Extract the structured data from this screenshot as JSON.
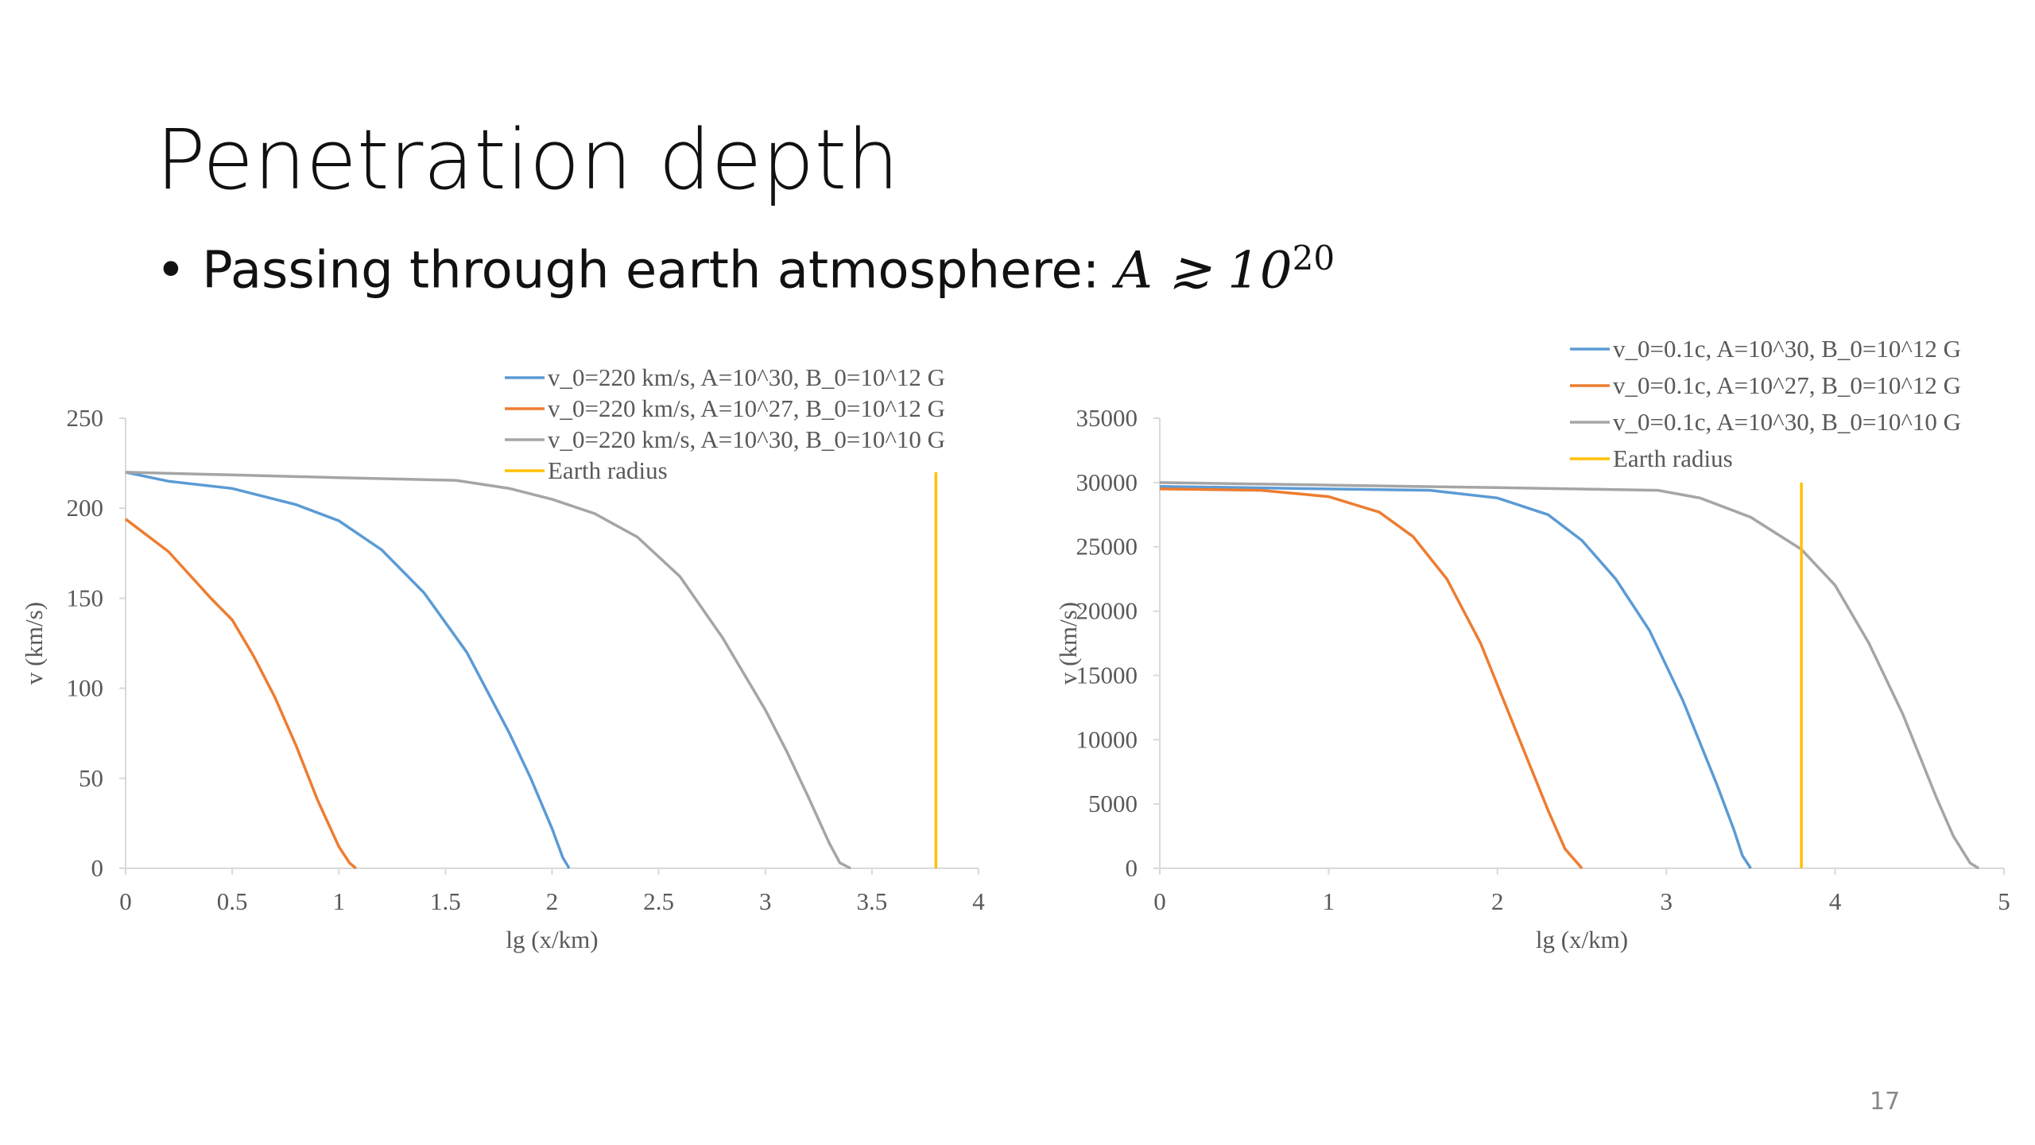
{
  "slide": {
    "title": "Penetration depth",
    "bullet": "Passing through earth atmosphere: ",
    "formula": "A ≳ 10",
    "formula_superscript": "20",
    "page_number": "17"
  },
  "chart_data": [
    {
      "type": "line",
      "xlabel": "lg (x/km)",
      "ylabel": "v (km/s)",
      "xlim": [
        0,
        4
      ],
      "xticks": [
        0,
        0.5,
        1,
        1.5,
        2,
        2.5,
        3,
        3.5,
        4
      ],
      "ylim": [
        0,
        250
      ],
      "yticks": [
        0,
        50,
        100,
        150,
        200,
        250
      ],
      "grid": false,
      "legend_position": "upper right",
      "series": [
        {
          "name": "v_0=220 km/s, A=10^30, B_0=10^12 G",
          "color": "#5b9bd5",
          "x": [
            0,
            0.2,
            0.5,
            0.8,
            1.0,
            1.2,
            1.4,
            1.6,
            1.8,
            1.9,
            2.0,
            2.05,
            2.08
          ],
          "values": [
            220,
            215,
            211,
            202,
            193,
            177,
            153,
            120,
            75,
            50,
            22,
            6,
            0
          ]
        },
        {
          "name": "v_0=220 km/s, A=10^27, B_0=10^12 G",
          "color": "#ed7d31",
          "x": [
            0,
            0.2,
            0.4,
            0.5,
            0.6,
            0.7,
            0.8,
            0.9,
            1.0,
            1.05,
            1.08
          ],
          "values": [
            194,
            176,
            150,
            138,
            118,
            95,
            68,
            38,
            12,
            3,
            0
          ]
        },
        {
          "name": "v_0=220 km/s, A=10^30, B_0=10^10 G",
          "color": "#a5a5a5",
          "x": [
            0,
            0.5,
            1,
            1.55,
            1.8,
            2.0,
            2.2,
            2.4,
            2.6,
            2.8,
            3.0,
            3.1,
            3.2,
            3.3,
            3.35,
            3.4
          ],
          "values": [
            220,
            218.5,
            217,
            215.5,
            211,
            205,
            197,
            184,
            162,
            128,
            88,
            65,
            40,
            14,
            3,
            0
          ]
        },
        {
          "name": "Earth radius",
          "color": "#ffc000",
          "x": [
            3.8,
            3.8
          ],
          "values": [
            0,
            220
          ]
        }
      ]
    },
    {
      "type": "line",
      "xlabel": "lg (x/km)",
      "ylabel": "v (km/s)",
      "xlim": [
        0,
        5
      ],
      "xticks": [
        0,
        1,
        2,
        3,
        4,
        5
      ],
      "ylim": [
        0,
        35000
      ],
      "yticks": [
        0,
        5000,
        10000,
        15000,
        20000,
        25000,
        30000,
        35000
      ],
      "grid": false,
      "legend_position": "above",
      "series": [
        {
          "name": "v_0=0.1c, A=10^30, B_0=10^12 G",
          "color": "#5b9bd5",
          "x": [
            0,
            0.5,
            1,
            1.6,
            2.0,
            2.3,
            2.5,
            2.7,
            2.9,
            3.1,
            3.3,
            3.4,
            3.45,
            3.5
          ],
          "values": [
            29700,
            29600,
            29500,
            29400,
            28800,
            27500,
            25500,
            22500,
            18500,
            13000,
            6500,
            3000,
            1000,
            0
          ]
        },
        {
          "name": "v_0=0.1c, A=10^27, B_0=10^12 G",
          "color": "#ed7d31",
          "x": [
            0,
            0.6,
            1.0,
            1.3,
            1.5,
            1.7,
            1.9,
            2.1,
            2.3,
            2.4,
            2.5
          ],
          "values": [
            29500,
            29400,
            28900,
            27700,
            25800,
            22500,
            17500,
            11000,
            4500,
            1500,
            0
          ]
        },
        {
          "name": "v_0=0.1c, A=10^30, B_0=10^10 G",
          "color": "#a5a5a5",
          "x": [
            0,
            1,
            2,
            2.95,
            3.2,
            3.5,
            3.8,
            4.0,
            4.2,
            4.4,
            4.6,
            4.7,
            4.8,
            4.85
          ],
          "values": [
            30000,
            29800,
            29600,
            29400,
            28800,
            27300,
            24800,
            22000,
            17500,
            12000,
            5500,
            2500,
            400,
            0
          ]
        },
        {
          "name": "Earth radius",
          "color": "#ffc000",
          "x": [
            3.8,
            3.8
          ],
          "values": [
            0,
            30000
          ]
        }
      ]
    }
  ]
}
